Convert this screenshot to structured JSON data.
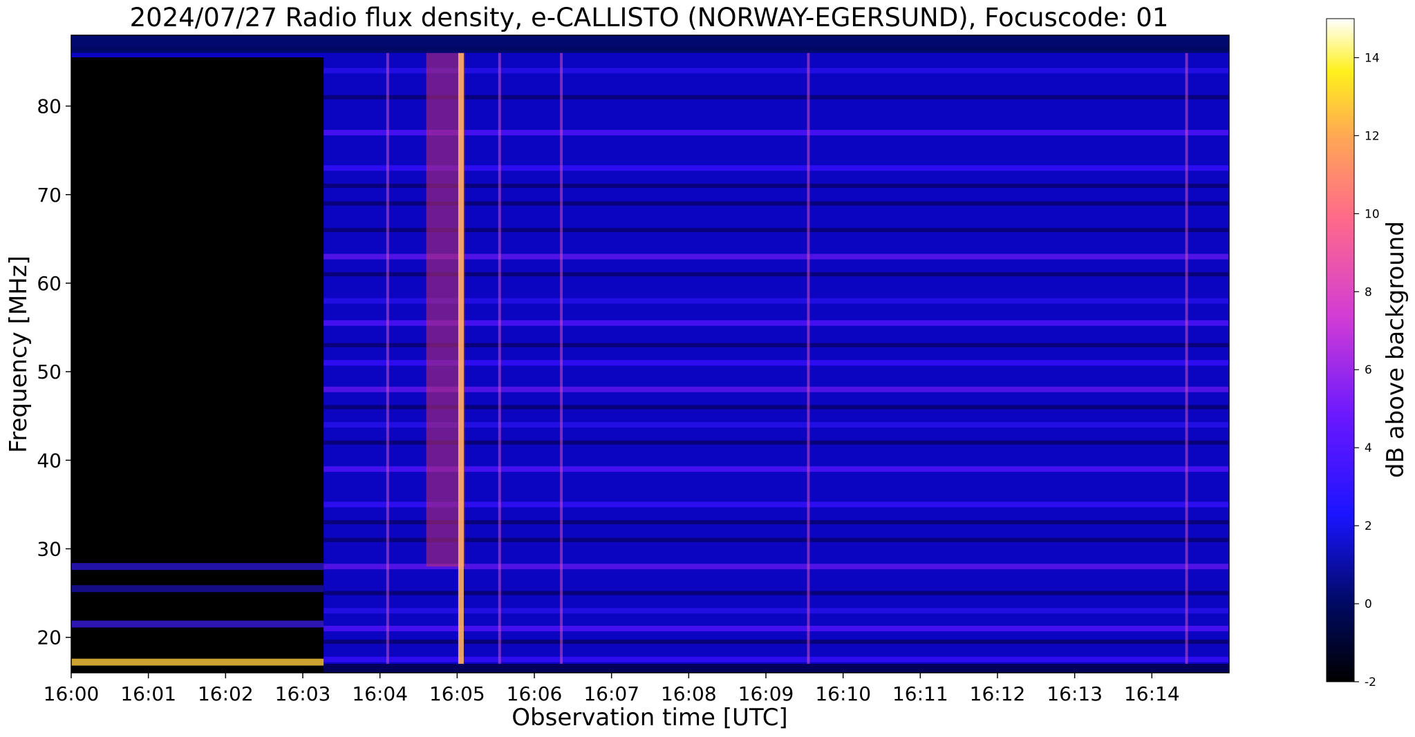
{
  "chart_data": {
    "type": "heatmap",
    "title": "2024/07/27  Radio flux density, e-CALLISTO (NORWAY-EGERSUND), Focuscode: 01",
    "xlabel": "Observation time [UTC]",
    "ylabel": "Frequency [MHz]",
    "colorbar_label": "dB above background",
    "colormap": "gnuplot2",
    "xlim": [
      "16:00",
      "16:15"
    ],
    "ylim": [
      16,
      88
    ],
    "clim": [
      -2,
      15
    ],
    "x_ticks": [
      "16:00",
      "16:01",
      "16:02",
      "16:03",
      "16:04",
      "16:05",
      "16:06",
      "16:07",
      "16:08",
      "16:09",
      "16:10",
      "16:11",
      "16:12",
      "16:13",
      "16:14"
    ],
    "y_ticks": [
      20,
      30,
      40,
      50,
      60,
      70,
      80
    ],
    "colorbar_ticks": [
      -2,
      0,
      2,
      4,
      6,
      8,
      10,
      12,
      14
    ],
    "features": {
      "no_data_until_min": 3.27,
      "burst_peak_min": 5.05,
      "burst_band_min": [
        4.6,
        5.1
      ],
      "bright_lines_min": [
        4.1,
        5.55,
        6.35,
        9.55,
        14.45
      ],
      "bright_bands_mhz": [
        17.5,
        21,
        23,
        28,
        35,
        39,
        44,
        48,
        51,
        55.5,
        58,
        63,
        73,
        77,
        84
      ]
    }
  }
}
